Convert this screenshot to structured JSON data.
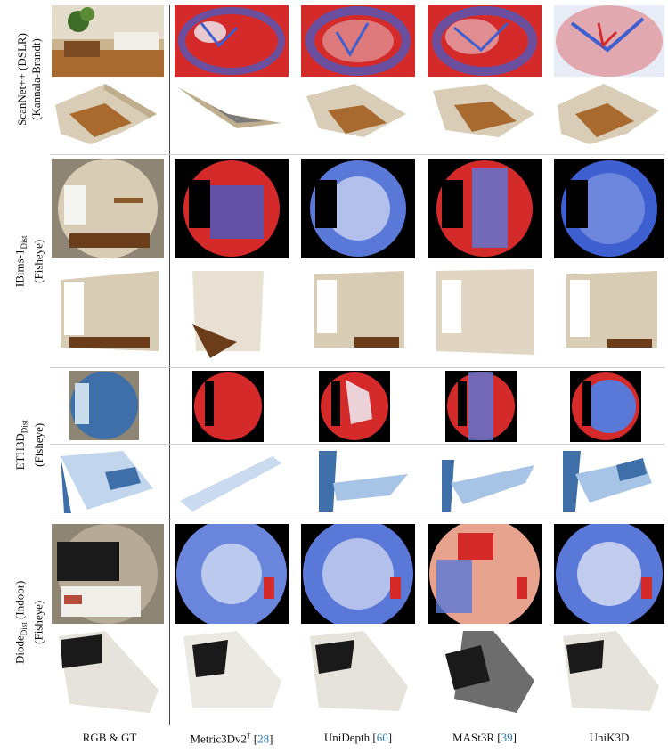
{
  "rows": [
    {
      "line1": "ScanNet++ (DSLR)",
      "line2": "(Kannala-Brandt)",
      "base": "",
      "sub": ""
    },
    {
      "line1": "",
      "line2": "(Fisheye)",
      "base": "IBims-1",
      "sub": "Dist"
    },
    {
      "line1": "",
      "line2": "(Fisheye)",
      "base": "ETH3D",
      "sub": "Dist"
    },
    {
      "line1": "(Indoor)",
      "line2": "(Fisheye)",
      "base": "Diode",
      "sub": "Dist"
    }
  ],
  "columns": [
    {
      "label": "RGB & GT",
      "cite": "",
      "sup": ""
    },
    {
      "label": "Metric3Dv2",
      "sup": "†",
      "cite": "28"
    },
    {
      "label": "UniDepth",
      "sup": "",
      "cite": "60"
    },
    {
      "label": "MASt3R",
      "sup": "",
      "cite": "39"
    },
    {
      "label": "UniK3D",
      "sup": "",
      "cite": ""
    }
  ],
  "colors": {
    "error_high": "#d42a2a",
    "error_low": "#3d5fd0",
    "error_mid": "#eef0f8",
    "wall": "#d9cdb8",
    "wood": "#9a5a2a"
  }
}
